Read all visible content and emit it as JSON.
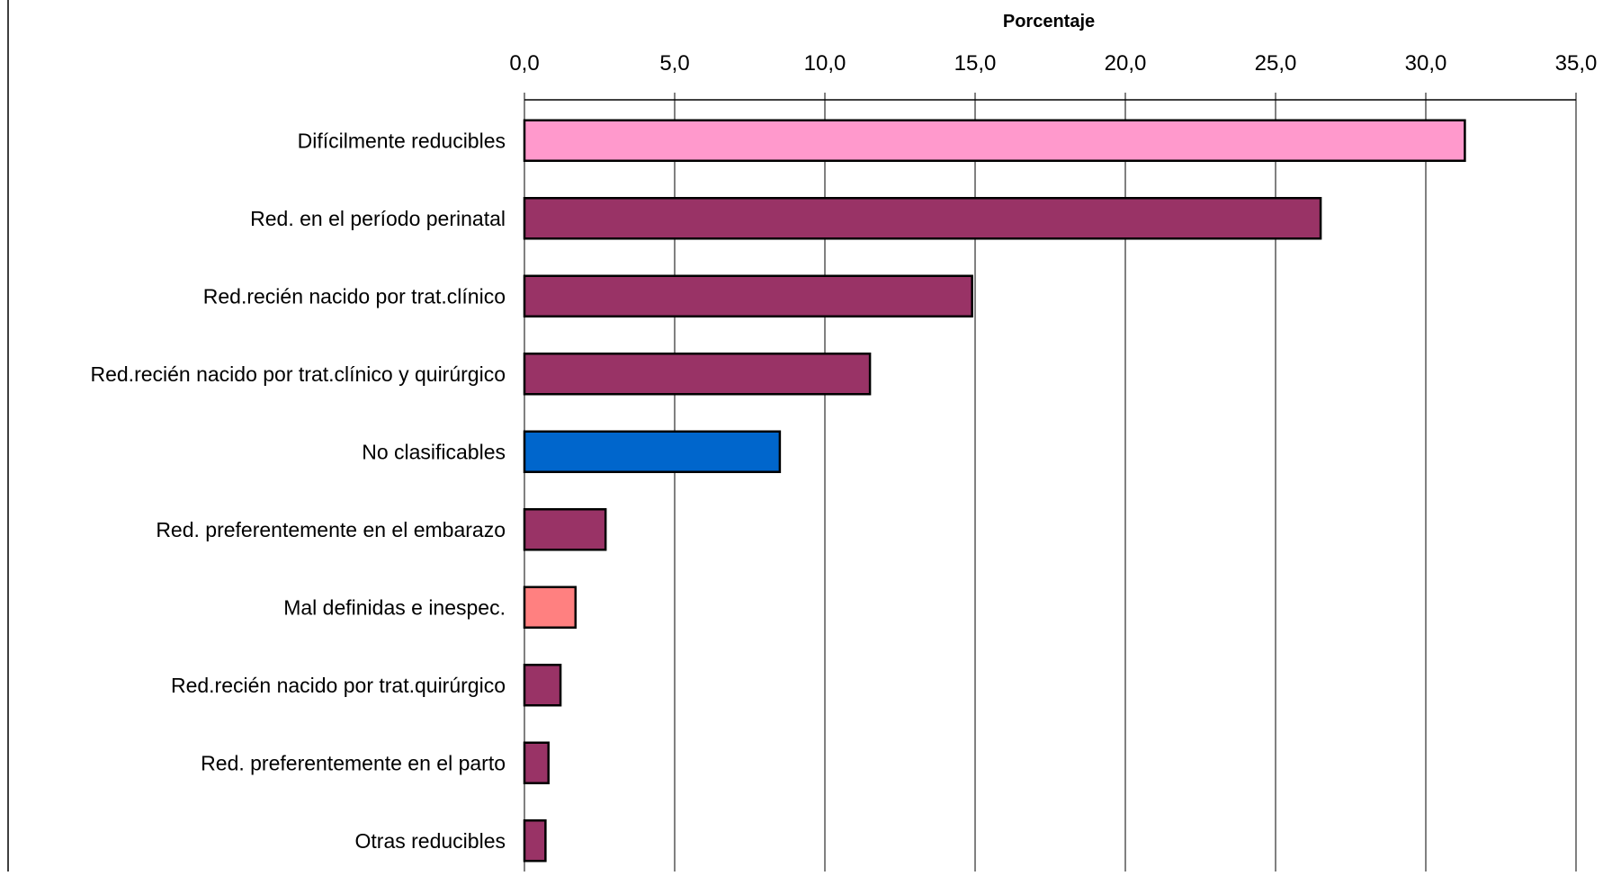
{
  "chart_data": {
    "type": "bar",
    "orientation": "horizontal",
    "xlabel": "Porcentaje",
    "xlabel_position": "top",
    "xlim": [
      0,
      35
    ],
    "xticks": [
      0,
      5,
      10,
      15,
      20,
      25,
      30,
      35
    ],
    "tick_labels": [
      "0,0",
      "5,0",
      "10,0",
      "15,0",
      "20,0",
      "25,0",
      "30,0",
      "35,0"
    ],
    "grid": "vertical",
    "legend": "none",
    "categories": [
      "Difícilmente reducibles",
      "Red. en el período perinatal",
      "Red.recién nacido por trat.clínico",
      "Red.recién nacido por trat.clínico y quirúrgico",
      "No clasificables",
      "Red. preferentemente en el embarazo",
      "Mal definidas e inespec.",
      "Red.recién nacido por trat.quirúrgico",
      "Red. preferentemente en el parto",
      "Otras reducibles"
    ],
    "values": [
      31.3,
      26.5,
      14.9,
      11.5,
      8.5,
      2.7,
      1.7,
      1.2,
      0.8,
      0.7
    ],
    "colors": [
      "#FF99CC",
      "#993366",
      "#993366",
      "#993366",
      "#0066CC",
      "#993366",
      "#FF8080",
      "#993366",
      "#993366",
      "#993366"
    ]
  }
}
